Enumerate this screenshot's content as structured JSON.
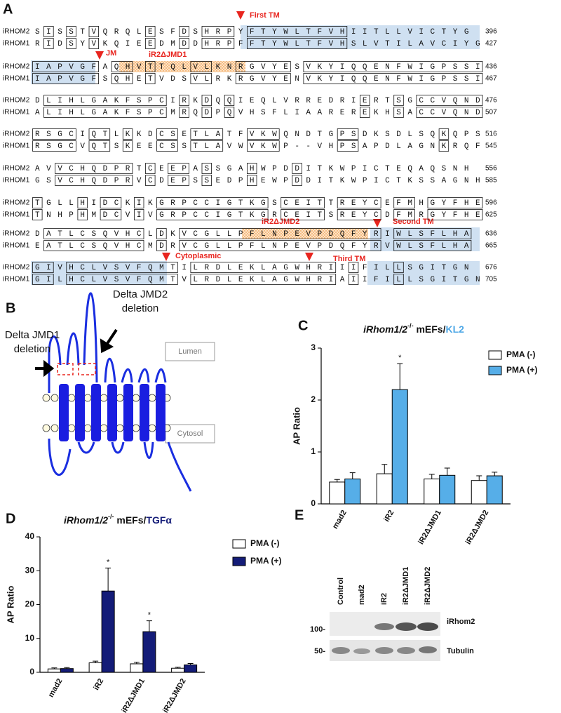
{
  "panel_a": {
    "panel": "A",
    "rows": [
      {
        "seqs": [
          {
            "name": "iRHOM2",
            "sequence": "SISSTVQRQLESFDSHRPYFTYWLTFVHIITLLVICTYG",
            "end": 396
          },
          {
            "name": "iRHOM1",
            "sequence": "RIDSYVKQIEEDMDDHRPFFTYWLTFVHSLVTILAVCIYG",
            "end": 427
          }
        ]
      },
      {
        "seqs": [
          {
            "name": "iRHOM2",
            "sequence": "IAPVGFAQHVTTQLVLKNRGVYESVKYIQQENFWIGPSSI",
            "end": 436
          },
          {
            "name": "iRHOM1",
            "sequence": "IAPVGFSQHETVDSVLRKRGVYENVKYIQQENFWIGPSSI",
            "end": 467
          }
        ]
      },
      {
        "seqs": [
          {
            "name": "iRHOM2",
            "sequence": "DLIHLGAKFSPCIRKDQQIEQLVRREDRIERTSGCCVQND",
            "end": 476
          },
          {
            "name": "iRHOM1",
            "sequence": "ALIHLGAKFSPCMRQDPQVHSFLIAAREREKHSACCVQND",
            "end": 507
          }
        ]
      },
      {
        "seqs": [
          {
            "name": "iRHOM2",
            "sequence": "RSGCIQTLKKDCSETLATFVKWQNDTGPSDKSDLSQKQPS",
            "end": 516
          },
          {
            "name": "iRHOM1",
            "sequence": "RSGCVQTSKEECSSTLAVWVKWP--VHPSAPDLAGNKRQF",
            "end": 545
          }
        ]
      },
      {
        "seqs": [
          {
            "name": "iRHOM2",
            "sequence": "AVVCHQDPRTCEEPASSGAHWPDDITKWPICTEQAQSNH",
            "end": 556
          },
          {
            "name": "iRHOM1",
            "sequence": "GSVCHQDPRVCDEPSSEDPHEWPDDITKWPICTKSSAGNH",
            "end": 585
          }
        ]
      },
      {
        "seqs": [
          {
            "name": "iRHOM2",
            "sequence": "TGLLHIDCKIKGRPCCIGTKGSCEITTREYCEFMHGYFHE",
            "end": 596
          },
          {
            "name": "iRHOM1",
            "sequence": "TNHPHMDCVIVGRPCCIGTKGRCEITSREYCDFMRGYFHE",
            "end": 625
          }
        ]
      },
      {
        "seqs": [
          {
            "name": "iRHOM2",
            "sequence": "DATLCSQVHCLDKVCGLLPFLNPEVPDQFYRIWLSFLHA",
            "end": 636
          },
          {
            "name": "iRHOM1",
            "sequence": "EATLCSQVHCMDRVCGLLPFLNPEVPDQFYRVWLSFLHA",
            "end": 665
          }
        ]
      },
      {
        "seqs": [
          {
            "name": "iRHOM2",
            "sequence": "GIVHCLVSVFQMTILRDLEKLAGWHRIIIFILLSGITGN",
            "end": 676
          },
          {
            "name": "iRHOM1",
            "sequence": "GILHCLVSVFQMTVLRDLEKLAGWHRIAIIFILLSGITGN",
            "end": 705
          }
        ]
      }
    ],
    "annotations": {
      "first_tm": "First TM",
      "jm": "JM",
      "jmd1": "iR2ΔJMD1",
      "second_tm": "Second TM",
      "jmd2": "iR2ΔJMD2",
      "cytoplasmic": "Cytoplasmic",
      "third_tm": "Third TM"
    }
  },
  "panel_b": {
    "panel": "B",
    "jmd1": [
      "Delta JMD1",
      "deletion"
    ],
    "jmd2": [
      "Delta JMD2",
      "deletion"
    ],
    "lumen": "Lumen",
    "cytosol": "Cytosol"
  },
  "chart_data": [
    {
      "type": "bar",
      "panel": "C",
      "title": {
        "gene": "iRhom1/2",
        "superscript": "-/-",
        "cells": " mEFs/",
        "ligand": "KL2",
        "ligand_color": "#4fa8e6"
      },
      "y_label": "AP Ratio",
      "categories": [
        "mad2",
        "iR2",
        "iR2ΔJMD1",
        "iR2ΔJMD2"
      ],
      "series": [
        {
          "name": "PMA (-)",
          "color": "#ffffff",
          "values": [
            0.42,
            0.58,
            0.48,
            0.45
          ],
          "errors": [
            0.05,
            0.18,
            0.09,
            0.09
          ],
          "significance": [
            null,
            null,
            null,
            null
          ]
        },
        {
          "name": "PMA (+)",
          "color": "#56aee8",
          "values": [
            0.48,
            2.2,
            0.55,
            0.54
          ],
          "errors": [
            0.12,
            0.5,
            0.14,
            0.07
          ],
          "significance": [
            null,
            "*",
            null,
            null
          ]
        }
      ],
      "ylim": [
        0,
        3
      ],
      "yticks": [
        0,
        1,
        2,
        3
      ],
      "grid": false
    },
    {
      "type": "bar",
      "panel": "D",
      "title": {
        "gene": "iRhom1/2",
        "superscript": "-/-",
        "cells": " mEFs/",
        "ligand": "TGFα",
        "ligand_color": "#141c78"
      },
      "y_label": "AP Ratio",
      "categories": [
        "mad2",
        "iR2",
        "iR2ΔJMD1",
        "iR2ΔJMD2"
      ],
      "series": [
        {
          "name": "PMA (-)",
          "color": "#ffffff",
          "values": [
            1.0,
            2.8,
            2.5,
            1.2
          ],
          "errors": [
            0.3,
            0.5,
            0.5,
            0.3
          ],
          "significance": [
            null,
            null,
            null,
            null
          ]
        },
        {
          "name": "PMA (+)",
          "color": "#141c78",
          "values": [
            1.1,
            24,
            12,
            2.2
          ],
          "errors": [
            0.3,
            6.8,
            3.2,
            0.4
          ],
          "significance": [
            null,
            "*",
            "*",
            null
          ]
        }
      ],
      "ylim": [
        0,
        40
      ],
      "yticks": [
        0,
        10,
        20,
        30,
        40
      ],
      "grid": false
    }
  ],
  "panel_e": {
    "panel": "E",
    "lanes": [
      "Control",
      "mad2",
      "iR2",
      "iR2ΔJMD1",
      "iR2ΔJMD2"
    ],
    "markers": [
      "100-",
      "50-"
    ],
    "bands": [
      "iRhom2",
      "Tubulin"
    ]
  }
}
